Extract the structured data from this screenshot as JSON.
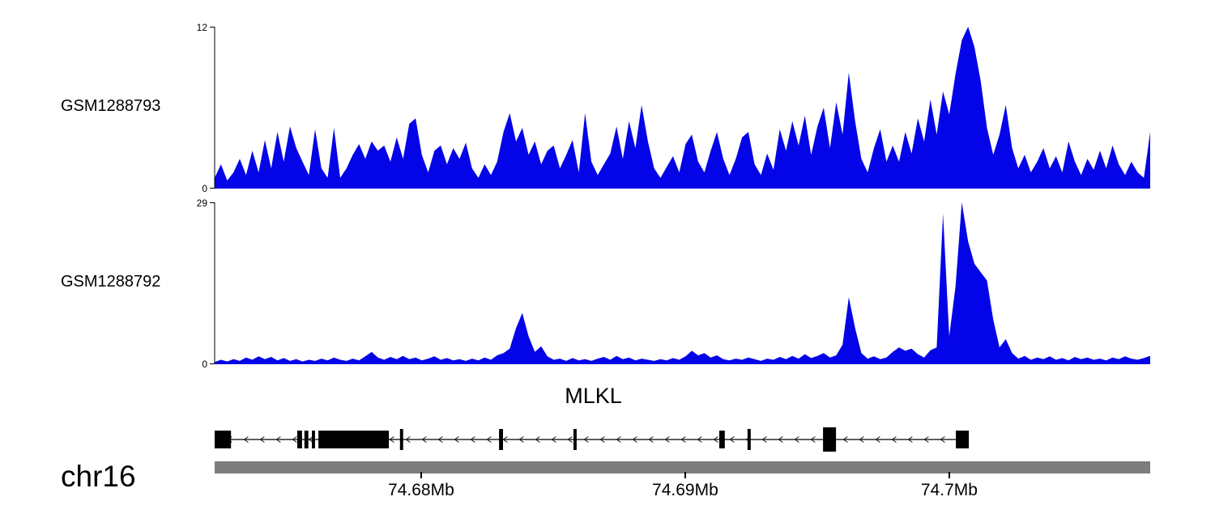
{
  "chart_data": {
    "type": "area",
    "title": "",
    "region": {
      "start_mb": 74.67218,
      "end_mb": 74.70761
    },
    "series": [
      {
        "name": "GSM1288793",
        "ylim": [
          0,
          12
        ],
        "ymax_label": "12",
        "ymin_label": "0",
        "color": "#0404E8",
        "values": [
          0.8,
          1.8,
          0.6,
          1.2,
          2.2,
          1.0,
          2.8,
          1.2,
          3.6,
          1.5,
          4.2,
          2.0,
          4.6,
          3.0,
          2.0,
          1.0,
          4.4,
          1.5,
          0.8,
          4.5,
          0.8,
          1.5,
          2.5,
          3.3,
          2.2,
          3.5,
          2.8,
          3.2,
          2.0,
          3.8,
          2.2,
          4.8,
          5.2,
          2.5,
          1.2,
          2.8,
          3.2,
          1.8,
          3.0,
          2.2,
          3.4,
          1.5,
          0.8,
          1.8,
          1.0,
          2.0,
          4.2,
          5.6,
          3.5,
          4.5,
          2.5,
          3.5,
          1.8,
          2.8,
          3.2,
          1.5,
          2.5,
          3.6,
          1.2,
          5.6,
          2.0,
          1.0,
          1.8,
          2.6,
          4.6,
          2.2,
          5.0,
          3.0,
          6.2,
          3.5,
          1.5,
          0.8,
          1.6,
          2.4,
          1.2,
          3.3,
          4.0,
          2.0,
          1.2,
          2.8,
          4.2,
          2.2,
          1.0,
          2.2,
          3.8,
          4.2,
          1.8,
          1.0,
          2.6,
          1.4,
          4.4,
          2.8,
          5.0,
          3.2,
          5.4,
          2.5,
          4.6,
          6.0,
          3.0,
          6.4,
          4.0,
          8.6,
          5.0,
          2.2,
          1.2,
          3.0,
          4.4,
          2.0,
          3.2,
          2.0,
          4.2,
          2.6,
          5.2,
          3.5,
          6.6,
          4.0,
          7.2,
          5.5,
          8.5,
          11.0,
          12.0,
          10.5,
          8.0,
          4.5,
          2.5,
          4.0,
          6.2,
          3.0,
          1.5,
          2.5,
          1.2,
          2.0,
          3.0,
          1.5,
          2.4,
          1.2,
          3.5,
          2.0,
          1.0,
          2.2,
          1.4,
          2.8,
          1.5,
          3.2,
          1.8,
          1.0,
          2.0,
          1.2,
          0.8,
          4.2
        ]
      },
      {
        "name": "GSM1288792",
        "ylim": [
          0,
          29
        ],
        "ymax_label": "29",
        "ymin_label": "0",
        "color": "#0404E8",
        "values": [
          0.4,
          0.8,
          0.5,
          0.9,
          0.6,
          1.2,
          0.8,
          1.4,
          0.9,
          1.3,
          0.7,
          1.1,
          0.6,
          0.9,
          0.5,
          0.8,
          0.6,
          1.0,
          0.7,
          1.2,
          0.8,
          0.6,
          1.0,
          0.7,
          1.4,
          2.2,
          1.2,
          0.8,
          1.3,
          0.9,
          1.5,
          0.9,
          1.2,
          0.7,
          1.0,
          1.4,
          0.8,
          1.1,
          0.7,
          0.9,
          0.6,
          1.0,
          0.7,
          1.2,
          0.8,
          1.6,
          2.0,
          2.8,
          6.5,
          9.2,
          5.0,
          2.2,
          3.2,
          1.4,
          0.8,
          1.0,
          0.6,
          1.1,
          0.7,
          0.9,
          0.6,
          1.0,
          1.3,
          0.8,
          1.5,
          0.9,
          1.2,
          0.7,
          1.0,
          0.8,
          0.6,
          0.9,
          0.7,
          1.1,
          0.8,
          1.4,
          2.4,
          1.6,
          2.0,
          1.2,
          1.6,
          0.9,
          0.7,
          1.0,
          0.8,
          1.2,
          0.9,
          0.6,
          1.0,
          0.8,
          1.3,
          0.9,
          1.5,
          1.0,
          1.8,
          1.1,
          1.5,
          2.0,
          1.2,
          1.6,
          3.5,
          12.0,
          6.5,
          2.0,
          1.0,
          1.4,
          0.9,
          1.2,
          2.2,
          3.0,
          2.4,
          2.8,
          1.8,
          1.2,
          2.5,
          3.0,
          27.0,
          5.0,
          14.0,
          29.0,
          22.0,
          18.0,
          16.5,
          15.0,
          8.0,
          3.0,
          4.5,
          2.0,
          1.0,
          1.5,
          0.8,
          1.2,
          0.9,
          1.4,
          0.8,
          1.1,
          0.7,
          1.3,
          0.9,
          1.2,
          0.8,
          1.0,
          0.7,
          1.2,
          0.9,
          1.4,
          1.0,
          0.8,
          1.1,
          1.5
        ]
      }
    ],
    "gene_track": {
      "name": "MLKL",
      "strand": "-",
      "line": {
        "start": 74.67233,
        "end": 74.70074
      },
      "exons": [
        {
          "start": 74.67218,
          "end": 74.6728,
          "kind": "box"
        },
        {
          "start": 74.67531,
          "end": 74.67549,
          "kind": "box"
        },
        {
          "start": 74.67558,
          "end": 74.67573,
          "kind": "box"
        },
        {
          "start": 74.67586,
          "end": 74.67598,
          "kind": "box"
        },
        {
          "start": 74.67611,
          "end": 74.67878,
          "kind": "box"
        },
        {
          "start": 74.6792,
          "end": 74.67932,
          "kind": "tick"
        },
        {
          "start": 74.68295,
          "end": 74.6831,
          "kind": "tick"
        },
        {
          "start": 74.68577,
          "end": 74.68589,
          "kind": "tick"
        },
        {
          "start": 74.69129,
          "end": 74.6915,
          "kind": "box"
        },
        {
          "start": 74.69236,
          "end": 74.69248,
          "kind": "tick"
        },
        {
          "start": 74.69522,
          "end": 74.69571,
          "kind": "tall"
        },
        {
          "start": 74.70025,
          "end": 74.70074,
          "kind": "box"
        }
      ]
    },
    "axis": {
      "chrom_label": "chr16",
      "bar_color": "#7d7d7d",
      "ticks": [
        {
          "pos_mb": 74.68,
          "label": "74.68Mb"
        },
        {
          "pos_mb": 74.69,
          "label": "74.69Mb"
        },
        {
          "pos_mb": 74.7,
          "label": "74.7Mb"
        }
      ]
    }
  }
}
